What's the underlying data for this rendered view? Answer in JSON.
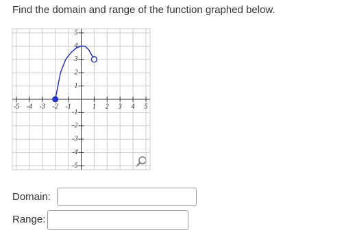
{
  "question": "Find the domain and range of the function graphed below.",
  "graph": {
    "xlim": [
      -5,
      5
    ],
    "ylim": [
      -5,
      5
    ],
    "xticks": [
      -5,
      -4,
      -3,
      -2,
      -1,
      1,
      2,
      3,
      4,
      5
    ],
    "yticks": [
      5,
      4,
      3,
      2,
      1,
      -1,
      -2,
      -3,
      -4,
      -5
    ],
    "curve": {
      "x": [
        -2,
        -1.6,
        -1.2,
        -0.8,
        -0.4,
        0,
        0.3,
        0.6,
        1
      ],
      "y": [
        0,
        2,
        3,
        3.5,
        3.85,
        4,
        4,
        3.7,
        3
      ]
    },
    "closed_point": {
      "x": -2,
      "y": 0
    },
    "open_point": {
      "x": 1,
      "y": 3
    },
    "color": "#2233cc"
  },
  "form": {
    "domain_label": "Domain:",
    "range_label": "Range:"
  }
}
